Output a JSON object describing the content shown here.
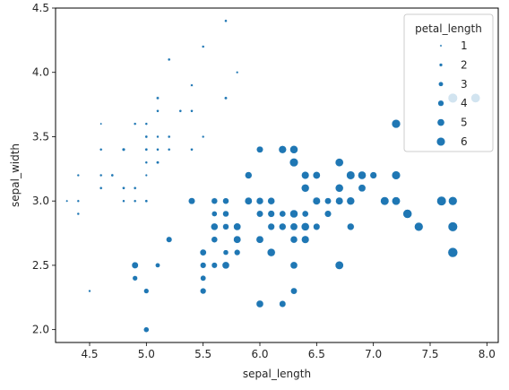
{
  "chart_data": {
    "type": "scatter",
    "xlabel": "sepal_length",
    "ylabel": "sepal_width",
    "xlim": [
      4.2,
      8.1
    ],
    "ylim": [
      1.9,
      4.5
    ],
    "xticks": [
      "4.5",
      "5.0",
      "5.5",
      "6.0",
      "6.5",
      "7.0",
      "7.5",
      "8.0"
    ],
    "yticks": [
      "2.0",
      "2.5",
      "3.0",
      "3.5",
      "4.0",
      "4.5"
    ],
    "marker_color": "#1f77b4",
    "size_legend": {
      "title": "petal_length",
      "placement": "top-right",
      "entries": [
        "1",
        "2",
        "3",
        "4",
        "5",
        "6"
      ]
    },
    "points": [
      [
        5.1,
        3.5,
        1.4
      ],
      [
        4.9,
        3.0,
        1.4
      ],
      [
        4.7,
        3.2,
        1.3
      ],
      [
        4.6,
        3.1,
        1.5
      ],
      [
        5.0,
        3.6,
        1.4
      ],
      [
        5.4,
        3.9,
        1.7
      ],
      [
        4.6,
        3.4,
        1.4
      ],
      [
        5.0,
        3.4,
        1.5
      ],
      [
        4.4,
        2.9,
        1.4
      ],
      [
        4.9,
        3.1,
        1.5
      ],
      [
        5.4,
        3.7,
        1.5
      ],
      [
        4.8,
        3.4,
        1.6
      ],
      [
        4.8,
        3.0,
        1.4
      ],
      [
        4.3,
        3.0,
        1.1
      ],
      [
        5.8,
        4.0,
        1.2
      ],
      [
        5.7,
        4.4,
        1.5
      ],
      [
        5.4,
        3.9,
        1.3
      ],
      [
        5.1,
        3.5,
        1.4
      ],
      [
        5.7,
        3.8,
        1.7
      ],
      [
        5.1,
        3.8,
        1.5
      ],
      [
        5.4,
        3.4,
        1.7
      ],
      [
        5.1,
        3.7,
        1.5
      ],
      [
        4.6,
        3.6,
        1.0
      ],
      [
        5.1,
        3.3,
        1.7
      ],
      [
        4.8,
        3.4,
        1.9
      ],
      [
        5.0,
        3.0,
        1.6
      ],
      [
        5.0,
        3.4,
        1.6
      ],
      [
        5.2,
        3.5,
        1.5
      ],
      [
        5.2,
        3.4,
        1.4
      ],
      [
        4.7,
        3.2,
        1.6
      ],
      [
        4.8,
        3.1,
        1.6
      ],
      [
        5.4,
        3.4,
        1.5
      ],
      [
        5.2,
        4.1,
        1.5
      ],
      [
        5.5,
        4.2,
        1.4
      ],
      [
        4.9,
        3.1,
        1.5
      ],
      [
        5.0,
        3.2,
        1.2
      ],
      [
        5.5,
        3.5,
        1.3
      ],
      [
        4.9,
        3.6,
        1.4
      ],
      [
        4.4,
        3.0,
        1.3
      ],
      [
        5.1,
        3.4,
        1.5
      ],
      [
        5.0,
        3.5,
        1.3
      ],
      [
        4.5,
        2.3,
        1.3
      ],
      [
        4.4,
        3.2,
        1.3
      ],
      [
        5.0,
        3.5,
        1.6
      ],
      [
        5.1,
        3.8,
        1.9
      ],
      [
        4.8,
        3.0,
        1.4
      ],
      [
        5.1,
        3.8,
        1.6
      ],
      [
        4.6,
        3.2,
        1.4
      ],
      [
        5.3,
        3.7,
        1.5
      ],
      [
        5.0,
        3.3,
        1.4
      ],
      [
        7.0,
        3.2,
        4.7
      ],
      [
        6.4,
        3.2,
        4.5
      ],
      [
        6.9,
        3.1,
        4.9
      ],
      [
        5.5,
        2.3,
        4.0
      ],
      [
        6.5,
        2.8,
        4.6
      ],
      [
        5.7,
        2.8,
        4.5
      ],
      [
        6.3,
        3.3,
        4.7
      ],
      [
        4.9,
        2.4,
        3.3
      ],
      [
        6.6,
        2.9,
        4.6
      ],
      [
        5.2,
        2.7,
        3.9
      ],
      [
        5.0,
        2.0,
        3.5
      ],
      [
        5.9,
        3.0,
        4.2
      ],
      [
        6.0,
        2.2,
        4.0
      ],
      [
        6.1,
        2.9,
        4.7
      ],
      [
        5.6,
        2.9,
        3.6
      ],
      [
        6.7,
        3.1,
        4.4
      ],
      [
        5.6,
        3.0,
        4.5
      ],
      [
        5.8,
        2.7,
        4.1
      ],
      [
        6.2,
        2.2,
        4.5
      ],
      [
        5.6,
        2.5,
        3.9
      ],
      [
        5.9,
        3.2,
        4.8
      ],
      [
        6.1,
        2.8,
        4.0
      ],
      [
        6.3,
        2.5,
        4.9
      ],
      [
        6.1,
        2.8,
        4.7
      ],
      [
        6.4,
        2.9,
        4.3
      ],
      [
        6.6,
        3.0,
        4.4
      ],
      [
        6.8,
        2.8,
        4.8
      ],
      [
        6.7,
        3.0,
        5.0
      ],
      [
        6.0,
        2.9,
        4.5
      ],
      [
        5.7,
        2.6,
        3.5
      ],
      [
        5.5,
        2.4,
        3.8
      ],
      [
        5.5,
        2.4,
        3.7
      ],
      [
        5.8,
        2.7,
        3.9
      ],
      [
        6.0,
        2.7,
        5.1
      ],
      [
        5.4,
        3.0,
        4.5
      ],
      [
        6.0,
        3.4,
        4.5
      ],
      [
        6.7,
        3.1,
        4.7
      ],
      [
        6.3,
        2.3,
        4.4
      ],
      [
        5.6,
        3.0,
        4.1
      ],
      [
        5.5,
        2.5,
        4.0
      ],
      [
        5.5,
        2.6,
        4.4
      ],
      [
        6.1,
        3.0,
        4.6
      ],
      [
        5.8,
        2.6,
        4.0
      ],
      [
        5.0,
        2.3,
        3.3
      ],
      [
        5.6,
        2.7,
        4.2
      ],
      [
        5.7,
        3.0,
        4.2
      ],
      [
        5.7,
        2.9,
        4.2
      ],
      [
        6.2,
        2.9,
        4.3
      ],
      [
        5.1,
        2.5,
        3.0
      ],
      [
        5.7,
        2.8,
        4.1
      ],
      [
        6.3,
        3.3,
        6.0
      ],
      [
        5.8,
        2.7,
        5.1
      ],
      [
        7.1,
        3.0,
        5.9
      ],
      [
        6.3,
        2.9,
        5.6
      ],
      [
        6.5,
        3.0,
        5.8
      ],
      [
        7.6,
        3.0,
        6.6
      ],
      [
        4.9,
        2.5,
        4.5
      ],
      [
        7.3,
        2.9,
        6.3
      ],
      [
        6.7,
        2.5,
        5.8
      ],
      [
        7.2,
        3.6,
        6.1
      ],
      [
        6.5,
        3.2,
        5.1
      ],
      [
        6.4,
        2.7,
        5.3
      ],
      [
        6.8,
        3.0,
        5.5
      ],
      [
        5.7,
        2.5,
        5.0
      ],
      [
        5.8,
        2.8,
        5.1
      ],
      [
        6.4,
        3.2,
        5.3
      ],
      [
        6.5,
        3.0,
        5.5
      ],
      [
        7.7,
        3.8,
        6.7
      ],
      [
        7.7,
        2.6,
        6.9
      ],
      [
        6.0,
        2.2,
        5.0
      ],
      [
        6.9,
        3.2,
        5.7
      ],
      [
        5.6,
        2.8,
        4.9
      ],
      [
        7.7,
        2.8,
        6.7
      ],
      [
        6.3,
        2.7,
        4.9
      ],
      [
        6.7,
        3.3,
        5.7
      ],
      [
        7.2,
        3.2,
        6.0
      ],
      [
        6.2,
        2.8,
        4.8
      ],
      [
        6.1,
        3.0,
        4.9
      ],
      [
        6.4,
        2.8,
        5.6
      ],
      [
        7.2,
        3.0,
        5.8
      ],
      [
        7.4,
        2.8,
        6.1
      ],
      [
        7.9,
        3.8,
        6.4
      ],
      [
        6.4,
        2.8,
        5.6
      ],
      [
        6.3,
        2.8,
        5.1
      ],
      [
        6.1,
        2.6,
        5.6
      ],
      [
        7.7,
        3.0,
        6.1
      ],
      [
        6.3,
        3.4,
        5.6
      ],
      [
        6.4,
        3.1,
        5.5
      ],
      [
        6.0,
        3.0,
        4.8
      ],
      [
        6.9,
        3.1,
        5.4
      ],
      [
        6.7,
        3.1,
        5.6
      ],
      [
        6.9,
        3.1,
        5.1
      ],
      [
        5.8,
        2.7,
        5.1
      ],
      [
        6.8,
        3.2,
        5.9
      ],
      [
        6.7,
        3.3,
        5.7
      ],
      [
        6.7,
        3.0,
        5.2
      ],
      [
        6.3,
        2.5,
        5.0
      ],
      [
        6.5,
        3.0,
        5.2
      ],
      [
        6.2,
        3.4,
        5.4
      ],
      [
        5.9,
        3.0,
        5.1
      ]
    ]
  }
}
